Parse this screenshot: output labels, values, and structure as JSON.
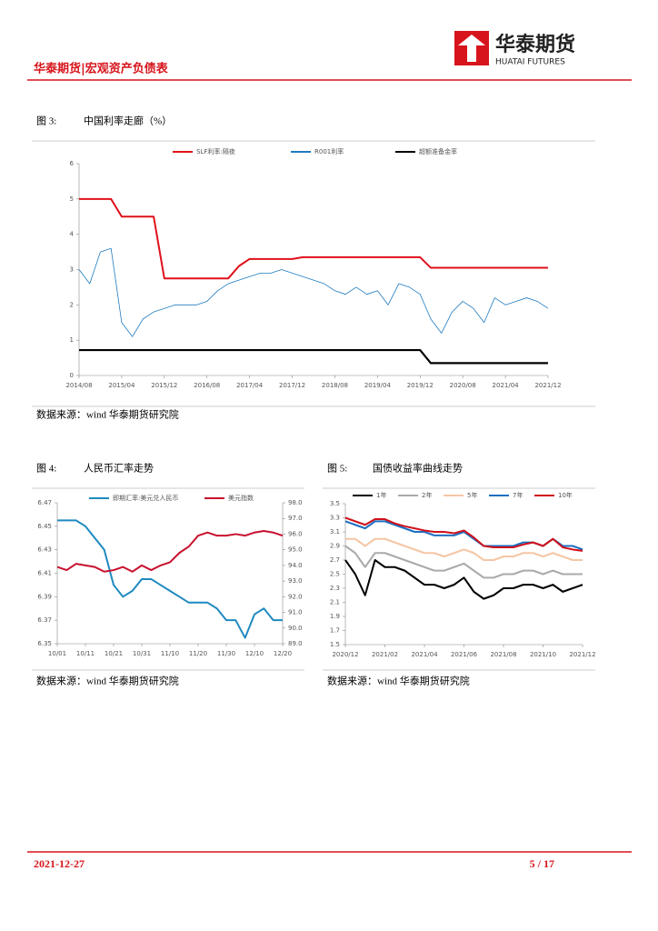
{
  "header": {
    "company": "华泰期货",
    "company_en": "HUATAI FUTURES",
    "report": "华泰期货|宏观资产负债表"
  },
  "figures": [
    {
      "label": "图 3:",
      "title": "中国利率走廊（%）",
      "source": "数据来源：wind 华泰期货研究院"
    },
    {
      "label": "图 4:",
      "title": "人民币汇率走势",
      "source": "数据来源：wind 华泰期货研究院"
    },
    {
      "label": "图 5:",
      "title": "国债收益率曲线走势",
      "source": "数据来源：wind 华泰期货研究院"
    }
  ],
  "footer": {
    "date": "2021-12-27",
    "page": "5 / 17"
  },
  "chart_data": [
    {
      "type": "line",
      "categories": [
        "2014/08",
        null,
        null,
        null,
        "2015/04",
        null,
        null,
        null,
        "2015/12",
        null,
        null,
        null,
        "2016/08",
        null,
        null,
        null,
        "2017/04",
        null,
        null,
        null,
        "2017/12",
        null,
        null,
        null,
        "2018/08",
        null,
        null,
        null,
        "2019/04",
        null,
        null,
        null,
        "2019/12",
        null,
        null,
        null,
        "2020/08",
        null,
        null,
        null,
        "2021/04",
        null,
        null,
        null,
        "2021/12"
      ],
      "series": [
        {
          "name": "SLF利率:隔夜",
          "color": "#e0101a",
          "values": [
            5,
            5,
            5,
            5,
            4.5,
            4.5,
            4.5,
            4.5,
            2.75,
            2.75,
            2.75,
            2.75,
            2.75,
            2.75,
            2.75,
            3.1,
            3.3,
            3.3,
            3.3,
            3.3,
            3.3,
            3.35,
            3.35,
            3.35,
            3.35,
            3.35,
            3.35,
            3.35,
            3.35,
            3.35,
            3.35,
            3.35,
            3.35,
            3.05,
            3.05,
            3.05,
            3.05,
            3.05,
            3.05,
            3.05,
            3.05,
            3.05,
            3.05,
            3.05,
            3.05
          ]
        },
        {
          "name": "R001利率",
          "color": "#1f7bc0",
          "values": [
            3.0,
            2.6,
            3.5,
            3.6,
            1.5,
            1.1,
            1.6,
            1.8,
            1.9,
            2.0,
            2.0,
            2.0,
            2.1,
            2.4,
            2.6,
            2.7,
            2.8,
            2.9,
            2.9,
            3.0,
            2.9,
            2.8,
            2.7,
            2.6,
            2.4,
            2.3,
            2.5,
            2.3,
            2.4,
            2.0,
            2.6,
            2.5,
            2.3,
            1.6,
            1.2,
            1.8,
            2.1,
            1.9,
            1.5,
            2.2,
            2.0,
            2.1,
            2.2,
            2.1,
            1.9
          ]
        },
        {
          "name": "超额准备金率",
          "color": "#000000",
          "values": [
            0.72,
            0.72,
            0.72,
            0.72,
            0.72,
            0.72,
            0.72,
            0.72,
            0.72,
            0.72,
            0.72,
            0.72,
            0.72,
            0.72,
            0.72,
            0.72,
            0.72,
            0.72,
            0.72,
            0.72,
            0.72,
            0.72,
            0.72,
            0.72,
            0.72,
            0.72,
            0.72,
            0.72,
            0.72,
            0.72,
            0.72,
            0.72,
            0.72,
            0.35,
            0.35,
            0.35,
            0.35,
            0.35,
            0.35,
            0.35,
            0.35,
            0.35,
            0.35,
            0.35,
            0.35
          ]
        }
      ],
      "ylim": [
        0,
        6
      ],
      "yticks": [
        0,
        1,
        2,
        3,
        4,
        5,
        6
      ]
    },
    {
      "type": "line",
      "categories": [
        "10/01",
        null,
        null,
        "10/11",
        null,
        null,
        "10/21",
        null,
        null,
        "10/31",
        null,
        null,
        "11/10",
        null,
        null,
        "11/20",
        null,
        null,
        "11/30",
        null,
        null,
        "12/10",
        null,
        null,
        "12/20"
      ],
      "series": [
        {
          "name": "即期汇率:美元兑人民币",
          "color": "#1f8ac0",
          "values": [
            6.455,
            6.455,
            6.455,
            6.45,
            6.44,
            6.43,
            6.4,
            6.39,
            6.395,
            6.405,
            6.405,
            6.4,
            6.395,
            6.39,
            6.385,
            6.385,
            6.385,
            6.38,
            6.37,
            6.37,
            6.355,
            6.375,
            6.38,
            6.37,
            6.37
          ]
        },
        {
          "name": "美元指数",
          "color": "#c8102e",
          "axis": "y2",
          "values": [
            93.9,
            93.7,
            94.1,
            94.0,
            93.9,
            93.6,
            93.7,
            93.9,
            93.6,
            94.0,
            93.7,
            94.0,
            94.2,
            94.8,
            95.2,
            95.9,
            96.1,
            95.9,
            95.9,
            96.0,
            95.9,
            96.1,
            96.2,
            96.1,
            95.9
          ]
        }
      ],
      "ylim": [
        6.35,
        6.47
      ],
      "yticks": [
        6.35,
        6.37,
        6.39,
        6.41,
        6.43,
        6.45,
        6.47
      ],
      "y2lim": [
        89,
        98
      ],
      "y2ticks": [
        {
          "value": 89,
          "label": "89.0"
        },
        {
          "value": 90,
          "label": "90.0"
        },
        {
          "value": 91,
          "label": "91.0"
        },
        {
          "value": 92,
          "label": "92.0"
        },
        {
          "value": 93,
          "label": "93.0"
        },
        {
          "value": 94,
          "label": "94.0"
        },
        {
          "value": 95,
          "label": "95.0"
        },
        {
          "value": 96,
          "label": "96.0"
        },
        {
          "value": 97,
          "label": "97.0"
        },
        {
          "value": 98,
          "label": "98.0"
        }
      ]
    },
    {
      "type": "line",
      "categories": [
        "2020/12",
        null,
        null,
        null,
        "2021/02",
        null,
        null,
        null,
        "2021/04",
        null,
        null,
        null,
        "2021/06",
        null,
        null,
        null,
        "2021/08",
        null,
        null,
        null,
        "2021/10",
        null,
        null,
        null,
        "2021/12"
      ],
      "series": [
        {
          "name": "1年",
          "color": "#000000",
          "values": [
            2.7,
            2.5,
            2.2,
            2.7,
            2.6,
            2.6,
            2.55,
            2.45,
            2.35,
            2.35,
            2.3,
            2.35,
            2.45,
            2.25,
            2.15,
            2.2,
            2.3,
            2.3,
            2.35,
            2.35,
            2.3,
            2.35,
            2.25,
            2.3,
            2.35
          ]
        },
        {
          "name": "2年",
          "color": "#aaaaaa",
          "values": [
            2.9,
            2.8,
            2.6,
            2.8,
            2.8,
            2.75,
            2.7,
            2.65,
            2.6,
            2.55,
            2.55,
            2.6,
            2.65,
            2.55,
            2.45,
            2.45,
            2.5,
            2.5,
            2.55,
            2.55,
            2.5,
            2.55,
            2.5,
            2.5,
            2.5
          ]
        },
        {
          "name": "5年",
          "color": "#f5c6a5",
          "values": [
            3.0,
            3.0,
            2.9,
            3.0,
            3.0,
            2.95,
            2.9,
            2.85,
            2.8,
            2.8,
            2.75,
            2.8,
            2.85,
            2.8,
            2.7,
            2.7,
            2.75,
            2.75,
            2.8,
            2.8,
            2.75,
            2.8,
            2.75,
            2.7,
            2.7
          ]
        },
        {
          "name": "7年",
          "color": "#1f6fc0",
          "values": [
            3.25,
            3.2,
            3.15,
            3.25,
            3.25,
            3.2,
            3.15,
            3.1,
            3.1,
            3.05,
            3.05,
            3.05,
            3.1,
            3.0,
            2.9,
            2.9,
            2.9,
            2.9,
            2.95,
            2.95,
            2.9,
            3.0,
            2.9,
            2.9,
            2.85
          ]
        },
        {
          "name": "10年",
          "color": "#d0101a",
          "values": [
            3.3,
            3.25,
            3.2,
            3.28,
            3.28,
            3.22,
            3.18,
            3.15,
            3.12,
            3.1,
            3.1,
            3.08,
            3.12,
            3.02,
            2.9,
            2.88,
            2.88,
            2.88,
            2.92,
            2.95,
            2.9,
            3.0,
            2.88,
            2.85,
            2.83
          ]
        }
      ],
      "ylim": [
        1.5,
        3.5
      ],
      "yticks": [
        1.5,
        1.7,
        1.9,
        2.1,
        2.3,
        2.5,
        2.7,
        2.9,
        3.1,
        3.3,
        3.5
      ]
    }
  ]
}
